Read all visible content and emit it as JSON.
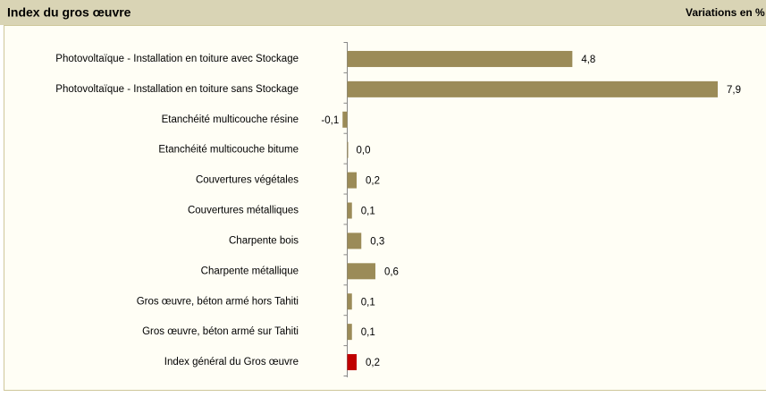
{
  "chart_data": {
    "type": "hbar",
    "title": "Index du gros œuvre",
    "subtitle": "Variations en %",
    "categories": [
      "Photovoltaïque - Installation en toiture avec Stockage",
      "Photovoltaïque - Installation en toiture sans Stockage",
      "Etanchéité multicouche résine",
      "Etanchéité multicouche bitume",
      "Couvertures végétales",
      "Couvertures métalliques",
      "Charpente bois",
      "Charpente métallique",
      "Gros œuvre, béton armé hors Tahiti",
      "Gros œuvre, béton armé sur Tahiti",
      "Index général du Gros œuvre"
    ],
    "values": [
      4.8,
      7.9,
      -0.1,
      0.0,
      0.2,
      0.1,
      0.3,
      0.6,
      0.1,
      0.1,
      0.2
    ],
    "value_labels": [
      "4,8",
      "7,9",
      "-0,1",
      "0,0",
      "0,2",
      "0,1",
      "0,3",
      "0,6",
      "0,1",
      "0,1",
      "0,2"
    ],
    "colors": [
      "#9b8b58",
      "#9b8b58",
      "#9b8b58",
      "#9b8b58",
      "#9b8b58",
      "#9b8b58",
      "#9b8b58",
      "#9b8b58",
      "#9b8b58",
      "#9b8b58",
      "#c00000"
    ]
  }
}
